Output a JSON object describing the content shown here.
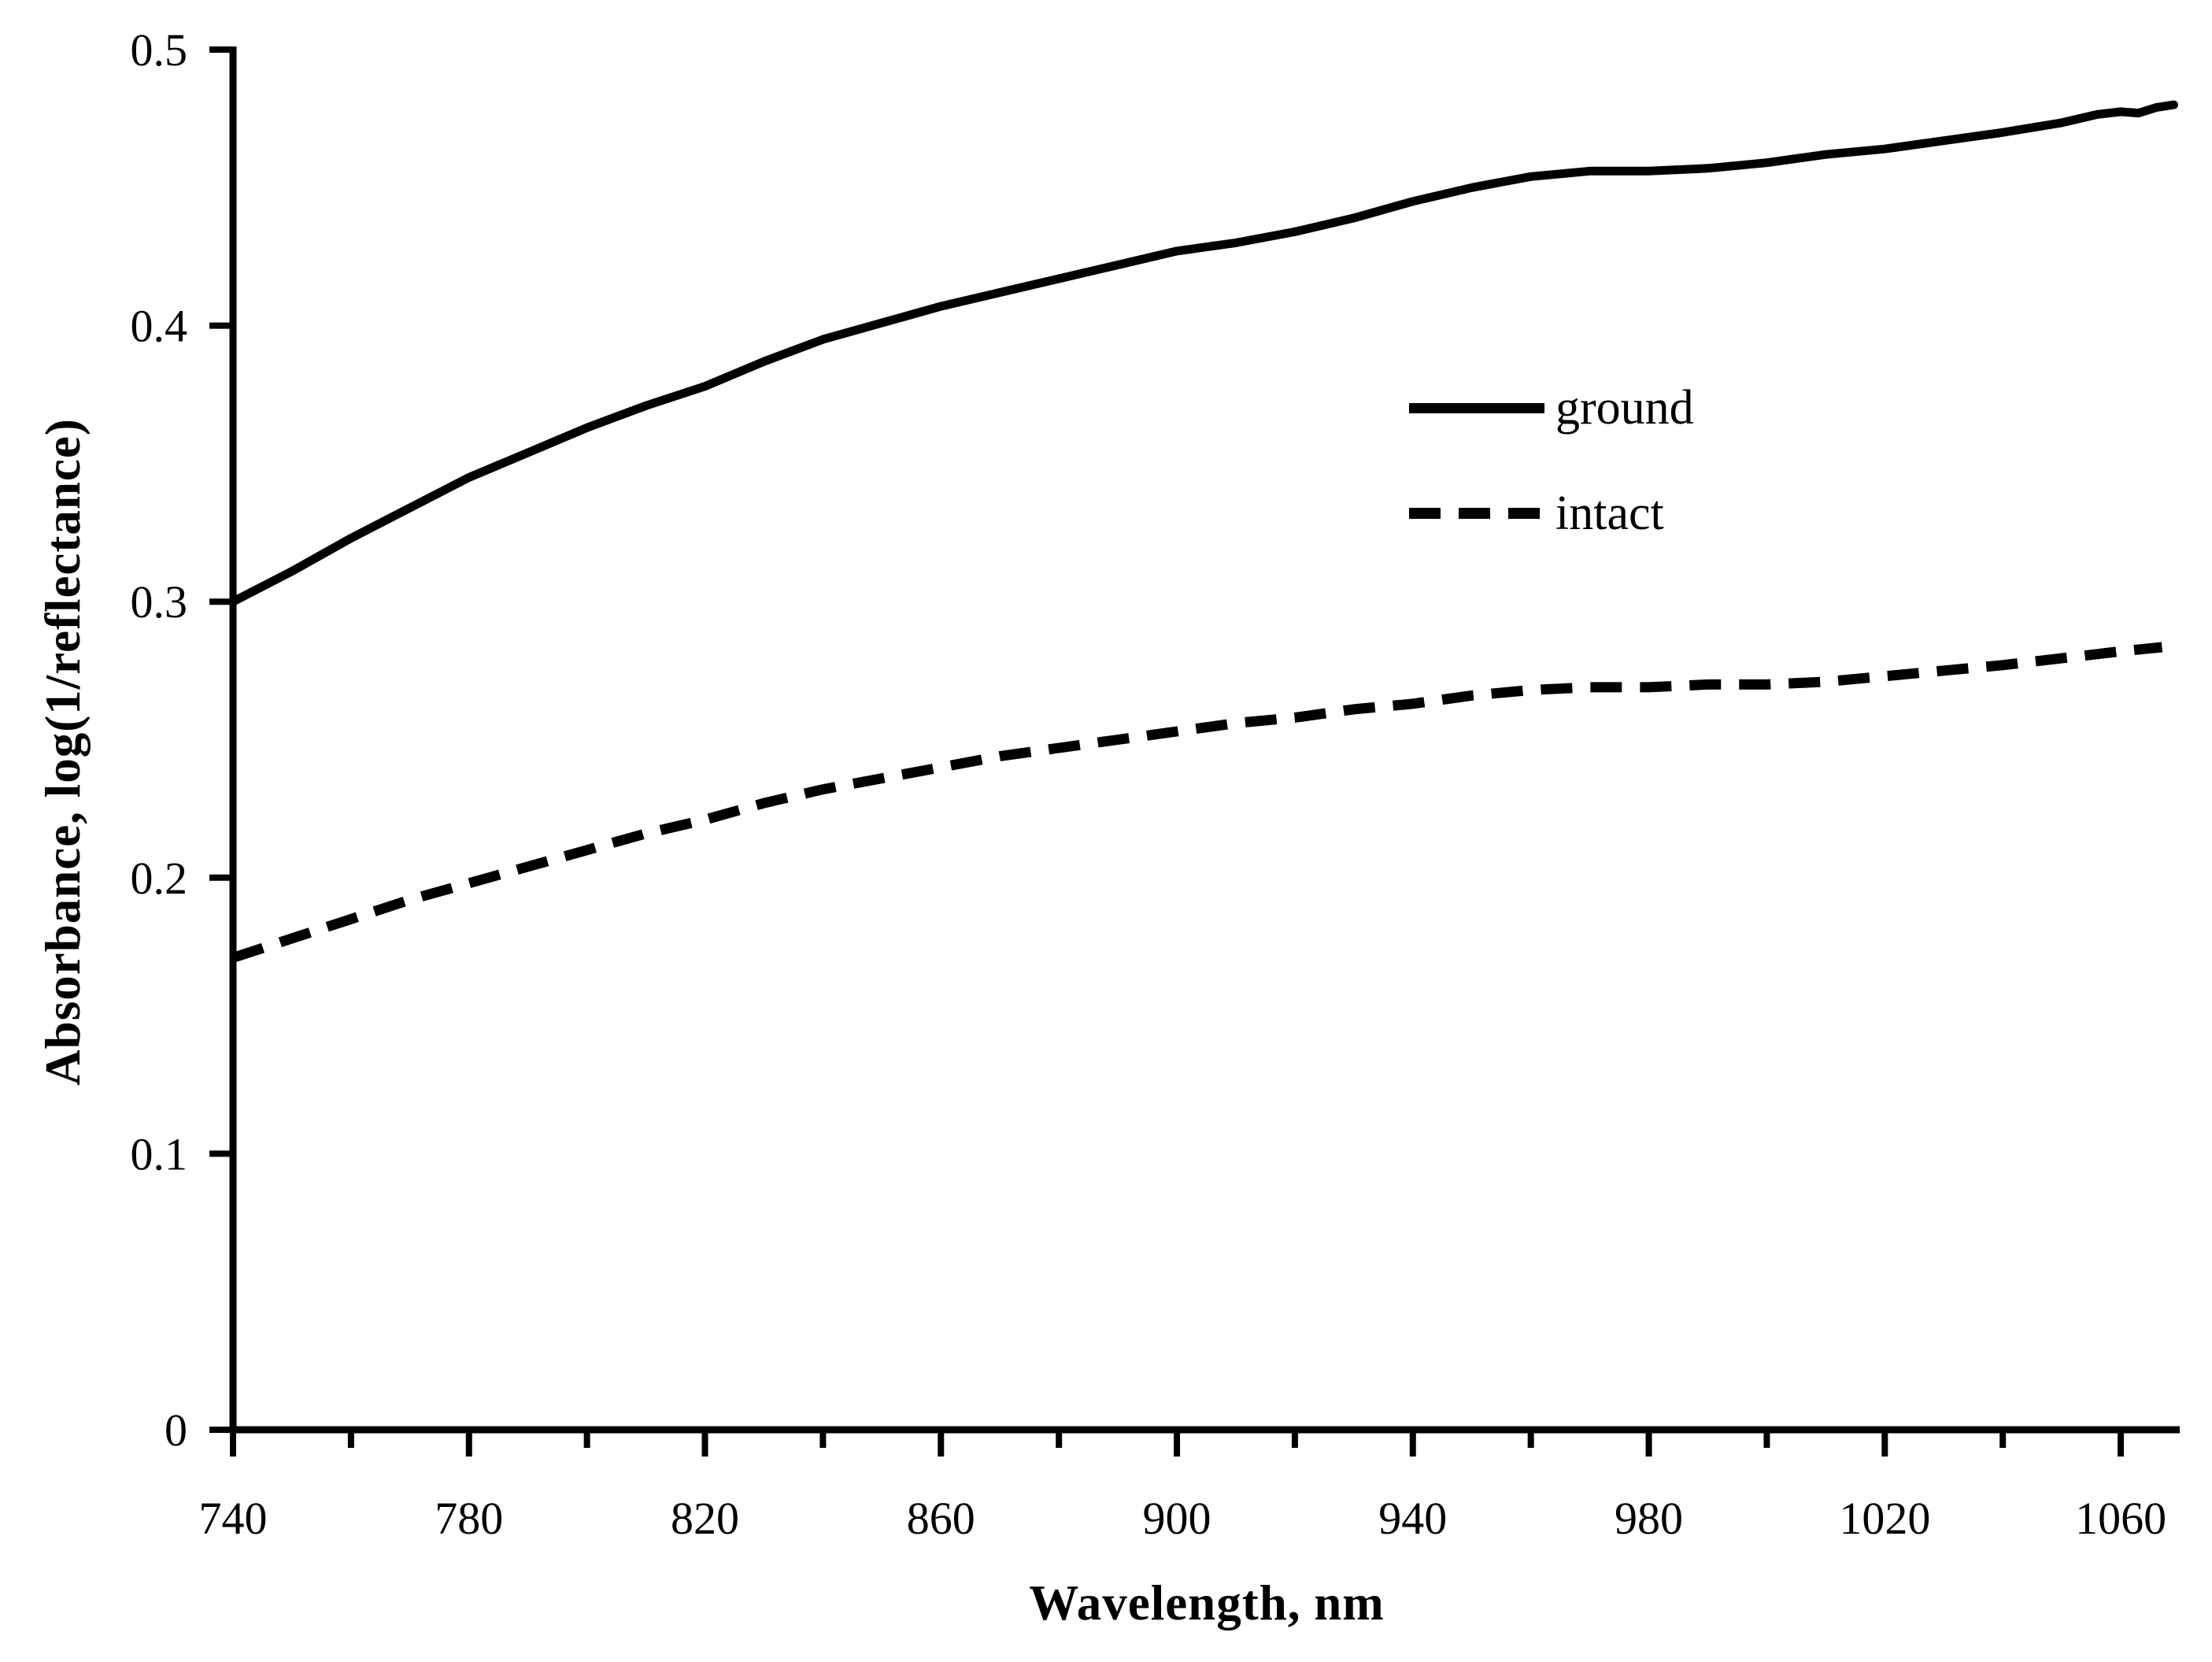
{
  "figure": {
    "background_color": "#ffffff",
    "ink_color": "#000000"
  },
  "chart_data": {
    "type": "line",
    "title": "",
    "xlabel": "Wavelength, nm",
    "ylabel": "Absorbance, log(1/reflectance)",
    "xlim": [
      740,
      1070
    ],
    "ylim": [
      0,
      0.5
    ],
    "grid": false,
    "legend_position": "center-right",
    "x_major_ticks": [
      740,
      780,
      820,
      860,
      900,
      940,
      980,
      1020,
      1060
    ],
    "x_minor_tick_step": 20,
    "x_minor_tick_end": 1060,
    "y_ticks": [
      0,
      0.1,
      0.2,
      0.3,
      0.4,
      0.5
    ],
    "y_tick_labels": [
      "0",
      "0.1",
      "0.2",
      "0.3",
      "0.4",
      "0.5"
    ],
    "series": [
      {
        "name": "ground",
        "line_style": "solid",
        "color": "#000000",
        "x": [
          740,
          750,
          760,
          770,
          780,
          790,
          800,
          810,
          820,
          830,
          840,
          850,
          860,
          870,
          880,
          890,
          900,
          910,
          920,
          930,
          940,
          950,
          960,
          970,
          980,
          990,
          1000,
          1010,
          1020,
          1030,
          1040,
          1050,
          1056,
          1060,
          1063,
          1066,
          1069
        ],
        "y": [
          0.3,
          0.311,
          0.323,
          0.334,
          0.345,
          0.354,
          0.363,
          0.371,
          0.378,
          0.387,
          0.395,
          0.401,
          0.407,
          0.412,
          0.417,
          0.422,
          0.427,
          0.43,
          0.434,
          0.439,
          0.445,
          0.45,
          0.454,
          0.456,
          0.456,
          0.457,
          0.459,
          0.462,
          0.464,
          0.467,
          0.47,
          0.4735,
          0.4765,
          0.4775,
          0.477,
          0.479,
          0.48
        ]
      },
      {
        "name": "intact",
        "line_style": "dashed",
        "color": "#000000",
        "x": [
          740,
          750,
          760,
          770,
          780,
          790,
          800,
          810,
          820,
          830,
          840,
          850,
          860,
          870,
          880,
          890,
          900,
          910,
          920,
          930,
          940,
          950,
          960,
          970,
          980,
          990,
          1000,
          1010,
          1020,
          1030,
          1040,
          1050,
          1060,
          1067
        ],
        "y": [
          0.171,
          0.178,
          0.185,
          0.192,
          0.198,
          0.204,
          0.21,
          0.216,
          0.221,
          0.227,
          0.232,
          0.236,
          0.24,
          0.244,
          0.247,
          0.25,
          0.253,
          0.256,
          0.258,
          0.261,
          0.263,
          0.266,
          0.268,
          0.269,
          0.269,
          0.27,
          0.27,
          0.271,
          0.273,
          0.275,
          0.277,
          0.2795,
          0.282,
          0.2835
        ]
      }
    ]
  }
}
